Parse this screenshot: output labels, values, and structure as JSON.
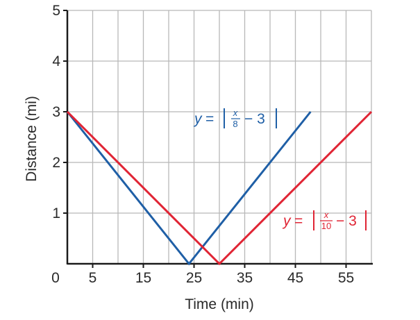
{
  "chart_data": {
    "type": "line",
    "xlabel": "Time (min)",
    "ylabel": "Distance (mi)",
    "xlim": [
      0,
      60
    ],
    "ylim": [
      0,
      5
    ],
    "x_ticks": [
      0,
      5,
      15,
      25,
      35,
      45,
      55
    ],
    "y_ticks": [
      0,
      1,
      2,
      3,
      4,
      5
    ],
    "x_grid_step": 5,
    "y_grid_step": 1,
    "grid": true,
    "series": [
      {
        "color": "#1f5fa6",
        "equation": {
          "lhs": "y",
          "eq": "=",
          "num": "x",
          "den": "8",
          "rest": "− 3"
        },
        "points": [
          [
            0,
            3
          ],
          [
            24,
            0
          ],
          [
            48,
            3
          ]
        ]
      },
      {
        "color": "#e02434",
        "equation": {
          "lhs": "y",
          "eq": "=",
          "num": "x",
          "den": "10",
          "rest": "− 3"
        },
        "points": [
          [
            0,
            3
          ],
          [
            30,
            0
          ],
          [
            60,
            3
          ]
        ]
      }
    ]
  }
}
